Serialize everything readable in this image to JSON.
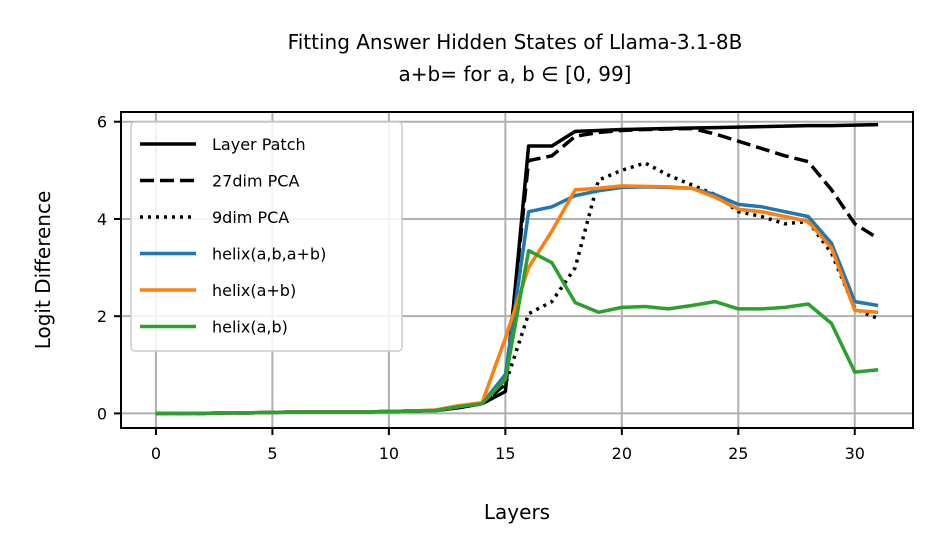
{
  "chart_data": {
    "type": "line",
    "title": "Fitting Answer Hidden States of Llama-3.1-8B",
    "subtitle": "a+b= for a, b ∈ [0, 99]",
    "xlabel": "Layers",
    "ylabel": "Logit Difference",
    "xlim": [
      -1.5,
      32.5
    ],
    "ylim": [
      -0.3,
      6.2
    ],
    "xticks": [
      0,
      5,
      10,
      15,
      20,
      25,
      30
    ],
    "yticks": [
      0,
      2,
      4,
      6
    ],
    "grid": true,
    "legend_position": "upper-left",
    "x": [
      0,
      1,
      2,
      3,
      4,
      5,
      6,
      7,
      8,
      9,
      10,
      11,
      12,
      13,
      14,
      15,
      16,
      17,
      18,
      19,
      20,
      21,
      22,
      23,
      24,
      25,
      26,
      27,
      28,
      29,
      30,
      31
    ],
    "series": [
      {
        "name": "Layer Patch",
        "color": "#000000",
        "style": "solid",
        "values": [
          0,
          0,
          0,
          0.01,
          0.01,
          0.02,
          0.03,
          0.03,
          0.03,
          0.03,
          0.04,
          0.05,
          0.06,
          0.12,
          0.2,
          0.45,
          5.5,
          5.5,
          5.8,
          5.82,
          5.84,
          5.85,
          5.86,
          5.87,
          5.88,
          5.89,
          5.9,
          5.91,
          5.92,
          5.92,
          5.93,
          5.94
        ]
      },
      {
        "name": "27dim PCA",
        "color": "#000000",
        "style": "dashed",
        "values": [
          0,
          0,
          0,
          0.01,
          0.01,
          0.02,
          0.03,
          0.03,
          0.03,
          0.03,
          0.04,
          0.05,
          0.06,
          0.12,
          0.2,
          0.6,
          5.2,
          5.3,
          5.7,
          5.78,
          5.82,
          5.84,
          5.85,
          5.86,
          5.75,
          5.6,
          5.45,
          5.3,
          5.18,
          4.6,
          3.9,
          3.6
        ]
      },
      {
        "name": "9dim PCA",
        "color": "#000000",
        "style": "dotted",
        "values": [
          0,
          0,
          0,
          0.01,
          0.01,
          0.02,
          0.03,
          0.03,
          0.03,
          0.03,
          0.04,
          0.05,
          0.06,
          0.12,
          0.2,
          0.6,
          2.05,
          2.3,
          3.0,
          4.8,
          5.0,
          5.15,
          4.9,
          4.7,
          4.5,
          4.15,
          4.05,
          3.9,
          3.95,
          3.3,
          2.15,
          1.95
        ]
      },
      {
        "name": "helix(a,b,a+b)",
        "color": "#1f77b4",
        "style": "solid",
        "values": [
          0,
          0,
          0,
          0.01,
          0.01,
          0.02,
          0.03,
          0.03,
          0.03,
          0.03,
          0.04,
          0.05,
          0.06,
          0.14,
          0.2,
          0.8,
          4.15,
          4.25,
          4.48,
          4.58,
          4.65,
          4.66,
          4.65,
          4.63,
          4.5,
          4.3,
          4.25,
          4.15,
          4.05,
          3.5,
          2.3,
          2.22
        ]
      },
      {
        "name": "helix(a+b)",
        "color": "#ff7f0e",
        "style": "solid",
        "values": [
          0,
          0,
          0,
          0.01,
          0.01,
          0.02,
          0.03,
          0.03,
          0.03,
          0.03,
          0.04,
          0.05,
          0.07,
          0.16,
          0.22,
          1.55,
          3.0,
          3.75,
          4.6,
          4.63,
          4.68,
          4.67,
          4.66,
          4.63,
          4.45,
          4.2,
          4.15,
          4.05,
          3.95,
          3.4,
          2.12,
          2.08
        ]
      },
      {
        "name": "helix(a,b)",
        "color": "#2ca02c",
        "style": "solid",
        "values": [
          0,
          0,
          0,
          0.01,
          0.01,
          0.02,
          0.03,
          0.03,
          0.03,
          0.03,
          0.04,
          0.05,
          0.06,
          0.14,
          0.2,
          0.7,
          3.35,
          3.1,
          2.28,
          2.08,
          2.18,
          2.2,
          2.15,
          2.22,
          2.3,
          2.15,
          2.15,
          2.18,
          2.25,
          1.85,
          0.85,
          0.9
        ]
      }
    ]
  }
}
